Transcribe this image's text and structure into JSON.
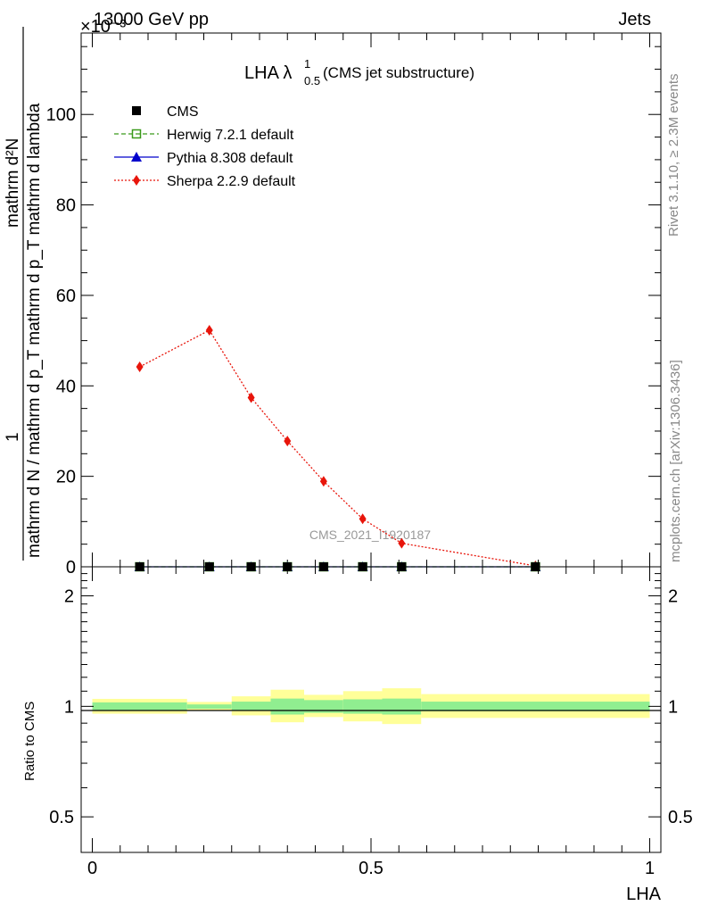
{
  "header": {
    "left": "13000 GeV pp",
    "right": "Jets",
    "exponent": "×10⁻³"
  },
  "title": {
    "main": "LHA λ",
    "sup": "1",
    "sub": "0.5",
    "suffix": " (CMS jet substructure)"
  },
  "side_labels": {
    "rivet": "Rivet 3.1.10, ≥ 2.3M events",
    "mcplots": "mcplots.cern.ch [arXiv:1306.3436]"
  },
  "watermark": "CMS_2021_I1920187",
  "colors": {
    "cms": "#000000",
    "herwig": "#3a9a1a",
    "pythia": "#0000cc",
    "sherpa": "#e8150b",
    "band_inner": "#90ee90",
    "band_outer": "#ffff99"
  },
  "chart_data": [
    {
      "type": "line",
      "panel": "main",
      "ylabel": {
        "line1": "1",
        "line2": "mathrm d N / mathrm d p_T mathrm d p_T mathrm d lambda",
        "line3": "mathrm d²N"
      },
      "xlim": [
        -0.02,
        1.02
      ],
      "ylim": [
        0,
        118
      ],
      "yticks": [
        0,
        20,
        40,
        60,
        80,
        100
      ],
      "ytick_labels": [
        "0",
        "20",
        "40",
        "60",
        "80",
        "100"
      ],
      "legend_position": "top-left",
      "series": [
        {
          "name": "CMS",
          "marker": "filled-square",
          "x": [
            0.085,
            0.21,
            0.285,
            0.35,
            0.415,
            0.485,
            0.555,
            0.795
          ],
          "y": [
            0,
            0,
            0,
            0,
            0,
            0,
            0,
            0
          ]
        },
        {
          "name": "Herwig 7.2.1 default",
          "marker": "open-square",
          "line": "dashed",
          "x": [
            0.085,
            0.21,
            0.285,
            0.35,
            0.415,
            0.485,
            0.555,
            0.795
          ],
          "y": [
            0,
            0,
            0,
            0,
            0,
            0,
            0,
            0
          ]
        },
        {
          "name": "Pythia 8.308 default",
          "marker": "triangle",
          "line": "solid",
          "x": [
            0.085,
            0.21,
            0.285,
            0.35,
            0.415,
            0.485,
            0.555,
            0.795
          ],
          "y": [
            0,
            0,
            0,
            0,
            0,
            0,
            0,
            0
          ]
        },
        {
          "name": "Sherpa 2.2.9 default",
          "marker": "diamond",
          "line": "dotted",
          "x": [
            0.085,
            0.21,
            0.285,
            0.35,
            0.415,
            0.485,
            0.555,
            0.795
          ],
          "y": [
            44.2,
            52.3,
            37.4,
            27.8,
            18.9,
            10.6,
            5.2,
            0.2
          ]
        }
      ]
    },
    {
      "type": "area",
      "panel": "ratio",
      "ylabel": "Ratio to CMS",
      "xlabel": "LHA",
      "xlim": [
        -0.02,
        1.02
      ],
      "ylim": [
        0.4,
        2.4
      ],
      "scale": "log",
      "yticks": [
        0.5,
        1,
        2
      ],
      "ytick_labels": [
        "0.5",
        "1",
        "2"
      ],
      "xticks": [
        0,
        0.5,
        1
      ],
      "xtick_labels": [
        "0",
        "0.5",
        "1"
      ],
      "bins": [
        {
          "x0": 0.0,
          "x1": 0.17,
          "inner": [
            0.975,
            1.025
          ],
          "outer": [
            0.955,
            1.048
          ]
        },
        {
          "x0": 0.17,
          "x1": 0.25,
          "inner": [
            0.985,
            1.012
          ],
          "outer": [
            0.975,
            1.028
          ]
        },
        {
          "x0": 0.25,
          "x1": 0.32,
          "inner": [
            0.975,
            1.03
          ],
          "outer": [
            0.945,
            1.065
          ]
        },
        {
          "x0": 0.32,
          "x1": 0.38,
          "inner": [
            0.95,
            1.05
          ],
          "outer": [
            0.905,
            1.11
          ]
        },
        {
          "x0": 0.38,
          "x1": 0.45,
          "inner": [
            0.96,
            1.04
          ],
          "outer": [
            0.935,
            1.075
          ]
        },
        {
          "x0": 0.45,
          "x1": 0.52,
          "inner": [
            0.955,
            1.045
          ],
          "outer": [
            0.91,
            1.1
          ]
        },
        {
          "x0": 0.52,
          "x1": 0.59,
          "inner": [
            0.95,
            1.05
          ],
          "outer": [
            0.895,
            1.12
          ]
        },
        {
          "x0": 0.59,
          "x1": 1.0,
          "inner": [
            0.97,
            1.03
          ],
          "outer": [
            0.93,
            1.08
          ]
        }
      ]
    }
  ]
}
